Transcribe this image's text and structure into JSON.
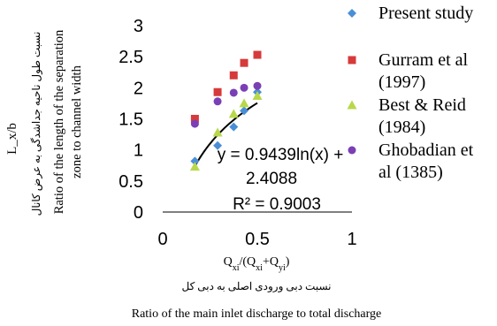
{
  "chart_data": {
    "type": "scatter",
    "x_axis": {
      "range": [
        0,
        1
      ],
      "ticks": [
        "0",
        "0.5",
        "1"
      ],
      "label_formula": "Q_xi/(Q_xi+Q_yi)",
      "label_persian": "نسبت دبی ورودی اصلی به دبی کل",
      "label_english": "Ratio of the main inlet discharge to total discharge"
    },
    "y_axis": {
      "range": [
        0,
        3
      ],
      "ticks": [
        "0",
        "0.5",
        "1",
        "1.5",
        "2",
        "2.5",
        "3"
      ],
      "label_formula": "L_x/b",
      "label_persian": "نسبت طول ناحیه جداشدگی به عرض کانال",
      "label_english": "Ratio of the length of the separation zone to channel width"
    },
    "grid": false,
    "legend_position": "right",
    "series": [
      {
        "name": "Present study",
        "marker": "diamond",
        "color": "#4a8fd6",
        "x": [
          0.17,
          0.29,
          0.375,
          0.43,
          0.5
        ],
        "y": [
          0.82,
          1.07,
          1.37,
          1.63,
          1.93
        ]
      },
      {
        "name": "Gurram et al (1997)",
        "marker": "square",
        "color": "#d63a3a",
        "x": [
          0.17,
          0.29,
          0.375,
          0.43,
          0.5
        ],
        "y": [
          1.5,
          1.93,
          2.2,
          2.4,
          2.53
        ]
      },
      {
        "name": "Best & Reid (1984)",
        "marker": "triangle",
        "color": "#b8d84a",
        "x": [
          0.17,
          0.29,
          0.375,
          0.43,
          0.5
        ],
        "y": [
          0.73,
          1.28,
          1.58,
          1.75,
          1.87
        ]
      },
      {
        "name": "Ghobadian et al (1385)",
        "marker": "circle",
        "color": "#7a3fb5",
        "x": [
          0.17,
          0.29,
          0.375,
          0.43,
          0.5
        ],
        "y": [
          1.42,
          1.78,
          1.92,
          2.0,
          2.03
        ]
      }
    ],
    "trendline": {
      "equation_line1": "y = 0.9439ln(x) +",
      "equation_line2": "2.4088",
      "r_squared": "R² = 0.9003",
      "a": 0.9439,
      "b": 2.4088,
      "x_from": 0.17,
      "x_to": 0.5,
      "color": "#000000"
    }
  }
}
